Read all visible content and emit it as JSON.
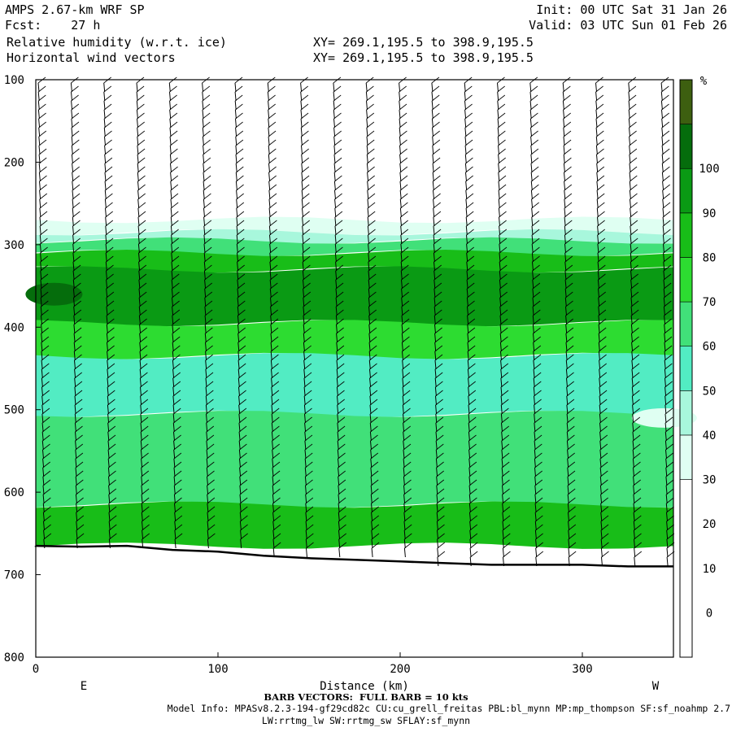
{
  "header": {
    "model": "AMPS 2.67-km WRF SP",
    "forecast": "Fcst:    27 h",
    "field1": "Relative humidity (w.r.t. ice)",
    "field2": "Horizontal wind vectors",
    "xy1": "XY= 269.1,195.5 to 398.9,195.5",
    "xy2": "XY= 269.1,195.5 to 398.9,195.5",
    "init": "Init: 00 UTC Sat 31 Jan 26",
    "valid": "Valid: 03 UTC Sun 01 Feb 26"
  },
  "footer": {
    "barb_note": "BARB VECTORS:  FULL BARB = 10 kts",
    "model_info": "Model Info: MPASv8.2.3-194-gf29cd82c CU:cu_grell_freitas PBL:bl_mynn MP:mp_thompson SF:sf_noahmp 2.7",
    "model_info2": "LW:rrtmg_lw SW:rrtmg_sw SFLAY:sf_mynn"
  },
  "chart_data": {
    "type": "heatmap",
    "title": "Relative humidity (w.r.t. ice)",
    "xlabel": "Distance (km)",
    "ylabel": "",
    "xlim": [
      0,
      350
    ],
    "ylim": [
      800,
      100
    ],
    "x_ticks": [
      0,
      100,
      200,
      300
    ],
    "y_ticks": [
      100,
      200,
      300,
      400,
      500,
      600,
      700,
      800
    ],
    "end_labels": {
      "left": "E",
      "right": "W"
    },
    "colorbar": {
      "unit": "%",
      "labels": [
        0,
        10,
        20,
        30,
        40,
        50,
        60,
        70,
        80,
        90,
        100
      ],
      "levels": [
        {
          "from": -10,
          "to": 30,
          "color": "#ffffff"
        },
        {
          "from": 30,
          "to": 40,
          "color": "#dffff2"
        },
        {
          "from": 40,
          "to": 50,
          "color": "#a8f7dc"
        },
        {
          "from": 50,
          "to": 60,
          "color": "#52ecc3"
        },
        {
          "from": 60,
          "to": 70,
          "color": "#41e079"
        },
        {
          "from": 70,
          "to": 80,
          "color": "#2ddc31"
        },
        {
          "from": 80,
          "to": 90,
          "color": "#18bd18"
        },
        {
          "from": 90,
          "to": 100,
          "color": "#0a9a14"
        },
        {
          "from": 100,
          "to": 110,
          "color": "#056d0c"
        },
        {
          "from": 110,
          "to": 120,
          "color": "#3d5f10"
        }
      ]
    },
    "terrain_pressure": [
      {
        "x": 0,
        "p": 665
      },
      {
        "x": 25,
        "p": 666
      },
      {
        "x": 50,
        "p": 665
      },
      {
        "x": 75,
        "p": 670
      },
      {
        "x": 100,
        "p": 672
      },
      {
        "x": 125,
        "p": 677
      },
      {
        "x": 150,
        "p": 680
      },
      {
        "x": 175,
        "p": 682
      },
      {
        "x": 200,
        "p": 684
      },
      {
        "x": 225,
        "p": 686
      },
      {
        "x": 250,
        "p": 688
      },
      {
        "x": 275,
        "p": 688
      },
      {
        "x": 300,
        "p": 688
      },
      {
        "x": 325,
        "p": 690
      },
      {
        "x": 350,
        "p": 690
      }
    ],
    "rh_bands_pressure": [
      {
        "rh": 35,
        "top": 270,
        "bottom": 285
      },
      {
        "rh": 45,
        "top": 285,
        "bottom": 295
      },
      {
        "rh": 65,
        "top": 295,
        "bottom": 310
      },
      {
        "rh": 80,
        "top": 310,
        "bottom": 330
      },
      {
        "rh": 95,
        "top": 330,
        "bottom": 395
      },
      {
        "rh": 75,
        "top": 395,
        "bottom": 435
      },
      {
        "rh": 55,
        "top": 435,
        "bottom": 505
      },
      {
        "rh": 65,
        "top": 505,
        "bottom": 615
      },
      {
        "rh": 80,
        "top": 615,
        "bottom": 665
      }
    ],
    "barb_x_km": [
      0,
      18,
      36,
      54,
      72,
      90,
      108,
      126,
      144,
      162,
      180,
      198,
      216,
      234,
      252,
      270,
      288,
      306,
      324,
      342
    ]
  }
}
